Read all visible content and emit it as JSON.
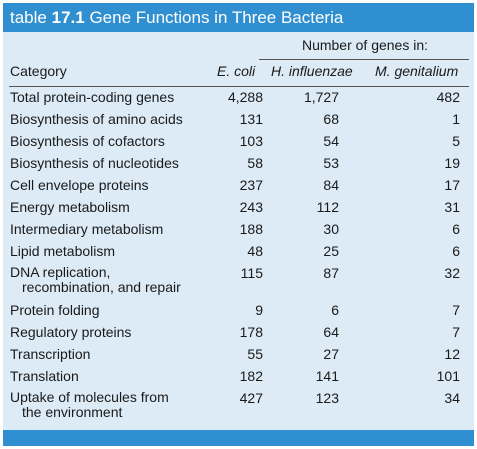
{
  "title": {
    "prefix": "table",
    "number": "17.1",
    "text": "Gene Functions in Three Bacteria"
  },
  "super_header": "Number of genes in:",
  "columns": [
    "Category",
    "E. coli",
    "H. influenzae",
    "M. genitalium"
  ],
  "rows": [
    {
      "category": "Total protein-coding genes",
      "ecoli": "4,288",
      "hinf": "1,727",
      "mgen": "482"
    },
    {
      "category": "Biosynthesis of amino acids",
      "ecoli": "131",
      "hinf": "68",
      "mgen": "1"
    },
    {
      "category": "Biosynthesis of cofactors",
      "ecoli": "103",
      "hinf": "54",
      "mgen": "5"
    },
    {
      "category": "Biosynthesis of nucleotides",
      "ecoli": "58",
      "hinf": "53",
      "mgen": "19"
    },
    {
      "category": "Cell envelope proteins",
      "ecoli": "237",
      "hinf": "84",
      "mgen": "17"
    },
    {
      "category": "Energy metabolism",
      "ecoli": "243",
      "hinf": "112",
      "mgen": "31"
    },
    {
      "category": "Intermediary metabolism",
      "ecoli": "188",
      "hinf": "30",
      "mgen": "6"
    },
    {
      "category": "Lipid metabolism",
      "ecoli": "48",
      "hinf": "25",
      "mgen": "6"
    },
    {
      "category": "DNA replication,",
      "category_cont": "recombination, and repair",
      "ecoli": "115",
      "hinf": "87",
      "mgen": "32"
    },
    {
      "category": "Protein folding",
      "ecoli": "9",
      "hinf": "6",
      "mgen": "7"
    },
    {
      "category": "Regulatory proteins",
      "ecoli": "178",
      "hinf": "64",
      "mgen": "7"
    },
    {
      "category": "Transcription",
      "ecoli": "55",
      "hinf": "27",
      "mgen": "12"
    },
    {
      "category": "Translation",
      "ecoli": "182",
      "hinf": "141",
      "mgen": "101"
    },
    {
      "category": "Uptake of molecules from",
      "category_cont": "the environment",
      "ecoli": "427",
      "hinf": "123",
      "mgen": "34"
    }
  ]
}
